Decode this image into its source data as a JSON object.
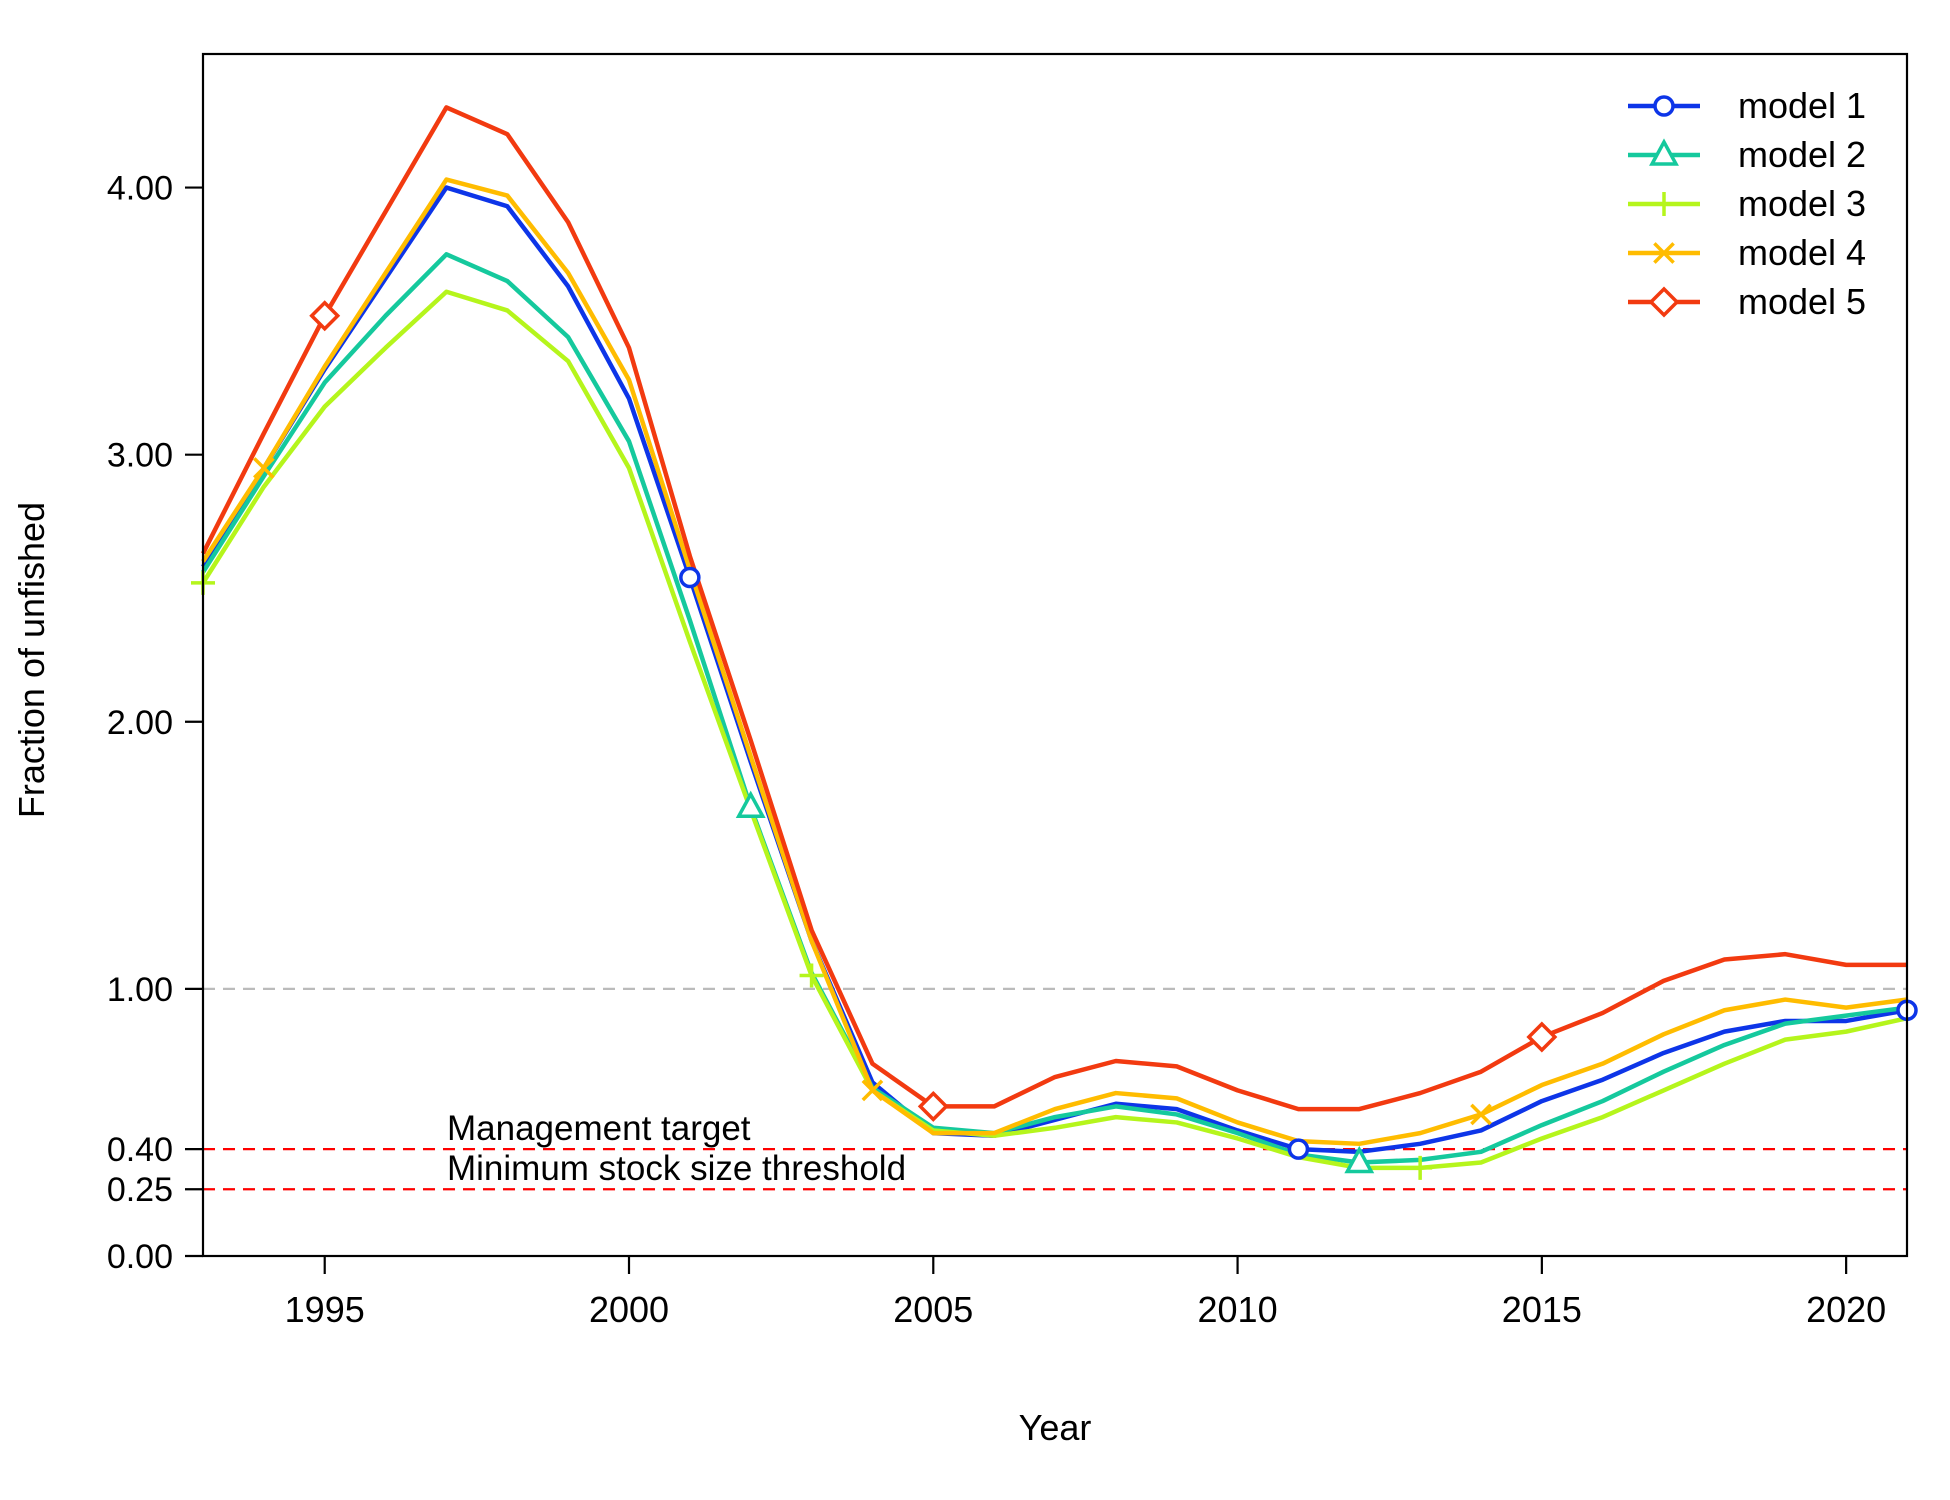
{
  "chart_data": {
    "type": "line",
    "xlabel": "Year",
    "ylabel": "Fraction of unfished",
    "xlim": [
      1993,
      2021
    ],
    "ylim": [
      0,
      4.5
    ],
    "xticks": [
      1995,
      2000,
      2005,
      2010,
      2015,
      2020
    ],
    "xtick_labels": [
      "1995",
      "2000",
      "2005",
      "2010",
      "2015",
      "2020"
    ],
    "yticks": [
      0,
      0.25,
      0.4,
      1,
      2,
      3,
      4
    ],
    "ytick_labels": [
      "0.00",
      "0.25",
      "0.40",
      "1.00",
      "2.00",
      "3.00",
      "4.00"
    ],
    "x": [
      1993,
      1994,
      1995,
      1996,
      1997,
      1998,
      1999,
      2000,
      2001,
      2002,
      2003,
      2004,
      2005,
      2006,
      2007,
      2008,
      2009,
      2010,
      2011,
      2012,
      2013,
      2014,
      2015,
      2016,
      2017,
      2018,
      2019,
      2020,
      2021
    ],
    "series": [
      {
        "name": "model 1",
        "color": "#0d35e8",
        "marker": "circle",
        "marker_years": [
          2001,
          2011,
          2021
        ],
        "values": [
          2.58,
          2.95,
          3.32,
          3.66,
          4.0,
          3.93,
          3.63,
          3.21,
          2.54,
          1.85,
          1.18,
          0.65,
          0.46,
          0.45,
          0.51,
          0.57,
          0.55,
          0.47,
          0.4,
          0.39,
          0.42,
          0.47,
          0.58,
          0.66,
          0.76,
          0.84,
          0.88,
          0.88,
          0.92
        ]
      },
      {
        "name": "model 2",
        "color": "#15c99d",
        "marker": "triangle",
        "marker_years": [
          2002,
          2012
        ],
        "values": [
          2.56,
          2.92,
          3.27,
          3.52,
          3.75,
          3.65,
          3.44,
          3.05,
          2.38,
          1.68,
          1.06,
          0.63,
          0.48,
          0.46,
          0.52,
          0.56,
          0.53,
          0.46,
          0.38,
          0.35,
          0.36,
          0.39,
          0.49,
          0.58,
          0.69,
          0.79,
          0.87,
          0.9,
          0.93
        ]
      },
      {
        "name": "model 3",
        "color": "#b5f51c",
        "marker": "plus",
        "marker_years": [
          1993,
          2003,
          2013
        ],
        "values": [
          2.52,
          2.88,
          3.18,
          3.4,
          3.61,
          3.54,
          3.35,
          2.95,
          2.3,
          1.67,
          1.05,
          0.62,
          0.47,
          0.45,
          0.48,
          0.52,
          0.5,
          0.44,
          0.37,
          0.33,
          0.33,
          0.35,
          0.44,
          0.52,
          0.62,
          0.72,
          0.81,
          0.84,
          0.89
        ]
      },
      {
        "name": "model 4",
        "color": "#ffbc00",
        "marker": "x",
        "marker_years": [
          1994,
          2004,
          2014
        ],
        "values": [
          2.6,
          2.95,
          3.33,
          3.68,
          4.03,
          3.97,
          3.68,
          3.28,
          2.57,
          1.87,
          1.18,
          0.62,
          0.46,
          0.46,
          0.55,
          0.61,
          0.59,
          0.5,
          0.43,
          0.42,
          0.46,
          0.53,
          0.64,
          0.72,
          0.83,
          0.92,
          0.96,
          0.93,
          0.96
        ]
      },
      {
        "name": "model 5",
        "color": "#f23a10",
        "marker": "diamond",
        "marker_years": [
          1995,
          2005,
          2015
        ],
        "values": [
          2.63,
          3.08,
          3.52,
          3.91,
          4.3,
          4.2,
          3.87,
          3.4,
          2.62,
          1.93,
          1.22,
          0.72,
          0.56,
          0.56,
          0.67,
          0.73,
          0.71,
          0.62,
          0.55,
          0.55,
          0.61,
          0.69,
          0.82,
          0.91,
          1.03,
          1.11,
          1.13,
          1.09,
          1.09
        ]
      }
    ],
    "reference_lines": [
      {
        "y": 1.0,
        "color": "#bbbbbb",
        "label": ""
      },
      {
        "y": 0.4,
        "color": "#ff0000",
        "label": "Management target"
      },
      {
        "y": 0.25,
        "color": "#ff0000",
        "label": "Minimum stock size threshold"
      }
    ],
    "legend_position": "top-right",
    "grid": false
  }
}
